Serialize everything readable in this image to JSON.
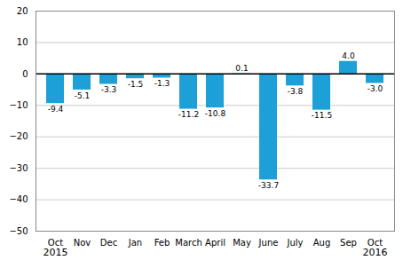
{
  "chart_data": {
    "type": "bar",
    "categories": [
      "Oct",
      "Nov",
      "Dec",
      "Jan",
      "Feb",
      "March",
      "April",
      "May",
      "June",
      "July",
      "Aug",
      "Sep",
      "Oct"
    ],
    "values": [
      -9.4,
      -5.1,
      -3.3,
      -1.5,
      -1.3,
      -11.2,
      -10.8,
      0.1,
      -33.7,
      -3.8,
      -11.5,
      4.0,
      -3.0
    ],
    "value_labels": [
      "-9.4",
      "-5.1",
      "-3.3",
      "-1.5",
      "-1.3",
      "-11.2",
      "-10.8",
      "0.1",
      "-33.7",
      "-3.8",
      "-11.5",
      "4.0",
      "-3.0"
    ],
    "data_labels": true,
    "color": "#1d9fd8",
    "ylim": [
      -50,
      20
    ],
    "yticks": [
      -50,
      -40,
      -30,
      -20,
      -10,
      0,
      10,
      20
    ],
    "grid": true,
    "annotations": [
      {
        "text": "2015",
        "x": 0
      },
      {
        "text": "2016",
        "x": 12
      }
    ]
  }
}
